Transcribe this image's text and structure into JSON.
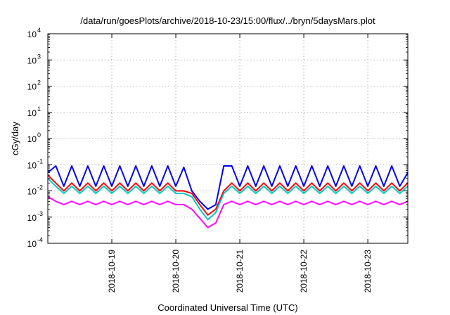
{
  "chart_data": {
    "type": "line",
    "title": "/data/run/goesPlots/archive/2018-10-23/15:00/flux/../bryn/5daysMars.plot",
    "xlabel": "Coordinated Universal Time (UTC)",
    "ylabel": "cGy/day",
    "yscale": "log",
    "ylim": [
      0.0001,
      10000
    ],
    "y_ticks": [
      {
        "base": "10",
        "exp": "-4",
        "value": 0.0001
      },
      {
        "base": "10",
        "exp": "-3",
        "value": 0.001
      },
      {
        "base": "10",
        "exp": "-2",
        "value": 0.01
      },
      {
        "base": "10",
        "exp": "-1",
        "value": 0.1
      },
      {
        "base": "10",
        "exp": "0",
        "value": 1
      },
      {
        "base": "10",
        "exp": "1",
        "value": 10
      },
      {
        "base": "10",
        "exp": "2",
        "value": 100
      },
      {
        "base": "10",
        "exp": "3",
        "value": 1000
      },
      {
        "base": "10",
        "exp": "4",
        "value": 10000
      }
    ],
    "xlim": [
      "2018-10-18 00:00",
      "2018-10-23 15:00"
    ],
    "x_ticks": [
      "2018-10-19",
      "2018-10-20",
      "2018-10-21",
      "2018-10-22",
      "2018-10-23"
    ],
    "grid": true,
    "legend": "none",
    "series": [
      {
        "color": "#ff00ff",
        "x": [
          "2018-10-18 00:00",
          "2018-10-18 03:00",
          "2018-10-18 06:00",
          "2018-10-18 09:00",
          "2018-10-18 12:00",
          "2018-10-18 15:00",
          "2018-10-18 18:00",
          "2018-10-18 21:00",
          "2018-10-19 00:00",
          "2018-10-19 03:00",
          "2018-10-19 06:00",
          "2018-10-19 09:00",
          "2018-10-19 12:00",
          "2018-10-19 15:00",
          "2018-10-19 18:00",
          "2018-10-19 21:00",
          "2018-10-20 00:00",
          "2018-10-20 03:00",
          "2018-10-20 06:00",
          "2018-10-20 09:00",
          "2018-10-20 12:00",
          "2018-10-20 15:00",
          "2018-10-20 18:00",
          "2018-10-20 21:00",
          "2018-10-21 00:00",
          "2018-10-21 03:00",
          "2018-10-21 06:00",
          "2018-10-21 09:00",
          "2018-10-21 12:00",
          "2018-10-21 15:00",
          "2018-10-21 18:00",
          "2018-10-21 21:00",
          "2018-10-22 00:00",
          "2018-10-22 03:00",
          "2018-10-22 06:00",
          "2018-10-22 09:00",
          "2018-10-22 12:00",
          "2018-10-22 15:00",
          "2018-10-22 18:00",
          "2018-10-22 21:00",
          "2018-10-23 00:00",
          "2018-10-23 03:00",
          "2018-10-23 06:00",
          "2018-10-23 09:00",
          "2018-10-23 12:00",
          "2018-10-23 15:00"
        ],
        "values": [
          0.006,
          0.004,
          0.003,
          0.004,
          0.003,
          0.004,
          0.003,
          0.004,
          0.003,
          0.004,
          0.003,
          0.004,
          0.003,
          0.004,
          0.003,
          0.004,
          0.003,
          0.003,
          0.002,
          0.0009,
          0.0004,
          0.0006,
          0.003,
          0.004,
          0.003,
          0.004,
          0.003,
          0.004,
          0.003,
          0.004,
          0.003,
          0.004,
          0.003,
          0.004,
          0.003,
          0.004,
          0.003,
          0.004,
          0.003,
          0.004,
          0.003,
          0.004,
          0.003,
          0.004,
          0.003,
          0.004
        ]
      },
      {
        "color": "#ff0000",
        "x": [
          "2018-10-18 00:00",
          "2018-10-18 03:00",
          "2018-10-18 06:00",
          "2018-10-18 09:00",
          "2018-10-18 12:00",
          "2018-10-18 15:00",
          "2018-10-18 18:00",
          "2018-10-18 21:00",
          "2018-10-19 00:00",
          "2018-10-19 03:00",
          "2018-10-19 06:00",
          "2018-10-19 09:00",
          "2018-10-19 12:00",
          "2018-10-19 15:00",
          "2018-10-19 18:00",
          "2018-10-19 21:00",
          "2018-10-20 00:00",
          "2018-10-20 03:00",
          "2018-10-20 06:00",
          "2018-10-20 09:00",
          "2018-10-20 12:00",
          "2018-10-20 15:00",
          "2018-10-20 18:00",
          "2018-10-20 21:00",
          "2018-10-21 00:00",
          "2018-10-21 03:00",
          "2018-10-21 06:00",
          "2018-10-21 09:00",
          "2018-10-21 12:00",
          "2018-10-21 15:00",
          "2018-10-21 18:00",
          "2018-10-21 21:00",
          "2018-10-22 00:00",
          "2018-10-22 03:00",
          "2018-10-22 06:00",
          "2018-10-22 09:00",
          "2018-10-22 12:00",
          "2018-10-22 15:00",
          "2018-10-22 18:00",
          "2018-10-22 21:00",
          "2018-10-23 00:00",
          "2018-10-23 03:00",
          "2018-10-23 06:00",
          "2018-10-23 09:00",
          "2018-10-23 12:00",
          "2018-10-23 15:00"
        ],
        "values": [
          0.04,
          0.02,
          0.01,
          0.02,
          0.01,
          0.02,
          0.01,
          0.02,
          0.01,
          0.02,
          0.01,
          0.02,
          0.01,
          0.02,
          0.01,
          0.02,
          0.01,
          0.01,
          0.008,
          0.003,
          0.0012,
          0.002,
          0.01,
          0.02,
          0.01,
          0.02,
          0.01,
          0.02,
          0.01,
          0.02,
          0.01,
          0.02,
          0.01,
          0.02,
          0.01,
          0.02,
          0.01,
          0.02,
          0.01,
          0.02,
          0.01,
          0.02,
          0.01,
          0.02,
          0.01,
          0.02
        ]
      },
      {
        "color": "#00c8c8",
        "x": [
          "2018-10-18 00:00",
          "2018-10-18 03:00",
          "2018-10-18 06:00",
          "2018-10-18 09:00",
          "2018-10-18 12:00",
          "2018-10-18 15:00",
          "2018-10-18 18:00",
          "2018-10-18 21:00",
          "2018-10-19 00:00",
          "2018-10-19 03:00",
          "2018-10-19 06:00",
          "2018-10-19 09:00",
          "2018-10-19 12:00",
          "2018-10-19 15:00",
          "2018-10-19 18:00",
          "2018-10-19 21:00",
          "2018-10-20 00:00",
          "2018-10-20 03:00",
          "2018-10-20 06:00",
          "2018-10-20 09:00",
          "2018-10-20 12:00",
          "2018-10-20 15:00",
          "2018-10-20 18:00",
          "2018-10-20 21:00",
          "2018-10-21 00:00",
          "2018-10-21 03:00",
          "2018-10-21 06:00",
          "2018-10-21 09:00",
          "2018-10-21 12:00",
          "2018-10-21 15:00",
          "2018-10-21 18:00",
          "2018-10-21 21:00",
          "2018-10-22 00:00",
          "2018-10-22 03:00",
          "2018-10-22 06:00",
          "2018-10-22 09:00",
          "2018-10-22 12:00",
          "2018-10-22 15:00",
          "2018-10-22 18:00",
          "2018-10-22 21:00",
          "2018-10-23 00:00",
          "2018-10-23 03:00",
          "2018-10-23 06:00",
          "2018-10-23 09:00",
          "2018-10-23 12:00",
          "2018-10-23 15:00"
        ],
        "values": [
          0.03,
          0.015,
          0.008,
          0.015,
          0.008,
          0.015,
          0.008,
          0.015,
          0.008,
          0.015,
          0.008,
          0.015,
          0.008,
          0.015,
          0.008,
          0.015,
          0.008,
          0.008,
          0.006,
          0.002,
          0.0008,
          0.0015,
          0.008,
          0.015,
          0.008,
          0.015,
          0.008,
          0.015,
          0.008,
          0.015,
          0.008,
          0.015,
          0.008,
          0.015,
          0.008,
          0.015,
          0.008,
          0.015,
          0.008,
          0.015,
          0.008,
          0.015,
          0.008,
          0.015,
          0.008,
          0.015
        ]
      },
      {
        "color": "#0000ff",
        "x": [
          "2018-10-18 00:00",
          "2018-10-18 03:00",
          "2018-10-18 06:00",
          "2018-10-18 09:00",
          "2018-10-18 12:00",
          "2018-10-18 15:00",
          "2018-10-18 18:00",
          "2018-10-18 21:00",
          "2018-10-19 00:00",
          "2018-10-19 03:00",
          "2018-10-19 06:00",
          "2018-10-19 09:00",
          "2018-10-19 12:00",
          "2018-10-19 15:00",
          "2018-10-19 18:00",
          "2018-10-19 21:00",
          "2018-10-20 00:00",
          "2018-10-20 03:00",
          "2018-10-20 06:00",
          "2018-10-20 09:00",
          "2018-10-20 12:00",
          "2018-10-20 15:00",
          "2018-10-20 18:00",
          "2018-10-20 21:00",
          "2018-10-21 00:00",
          "2018-10-21 03:00",
          "2018-10-21 06:00",
          "2018-10-21 09:00",
          "2018-10-21 12:00",
          "2018-10-21 15:00",
          "2018-10-21 18:00",
          "2018-10-21 21:00",
          "2018-10-22 00:00",
          "2018-10-22 03:00",
          "2018-10-22 06:00",
          "2018-10-22 09:00",
          "2018-10-22 12:00",
          "2018-10-22 15:00",
          "2018-10-22 18:00",
          "2018-10-22 21:00",
          "2018-10-23 00:00",
          "2018-10-23 03:00",
          "2018-10-23 06:00",
          "2018-10-23 09:00",
          "2018-10-23 12:00",
          "2018-10-23 15:00"
        ],
        "values": [
          0.05,
          0.09,
          0.015,
          0.09,
          0.015,
          0.09,
          0.015,
          0.09,
          0.015,
          0.09,
          0.015,
          0.09,
          0.015,
          0.09,
          0.015,
          0.09,
          0.015,
          0.08,
          0.01,
          0.004,
          0.002,
          0.003,
          0.09,
          0.09,
          0.015,
          0.09,
          0.015,
          0.09,
          0.015,
          0.09,
          0.015,
          0.09,
          0.015,
          0.09,
          0.015,
          0.09,
          0.015,
          0.09,
          0.015,
          0.09,
          0.015,
          0.09,
          0.015,
          0.09,
          0.015,
          0.05
        ]
      }
    ]
  }
}
